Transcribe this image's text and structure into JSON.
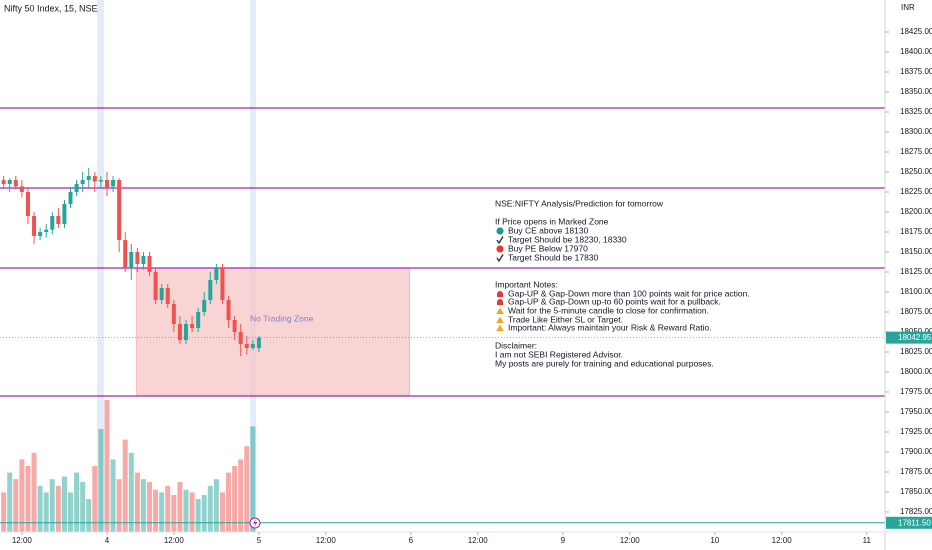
{
  "chart_data": {
    "type": "candlestick",
    "title": "Nifty 50 Index, 15, NSE",
    "currency": "INR",
    "up_color": "#26a69a",
    "down_color": "#ef5350",
    "x": [
      -17,
      -16,
      -15,
      -14,
      -13,
      -12,
      -11,
      -10,
      -9,
      -8,
      -7,
      -6,
      -5,
      -4,
      -3,
      -2,
      -1,
      0,
      1,
      2,
      3,
      4,
      5,
      6,
      7,
      8,
      9,
      10,
      11,
      12,
      13,
      14,
      15,
      16,
      17,
      18,
      19,
      20,
      21,
      22,
      23,
      24,
      25
    ],
    "open": [
      18240,
      18235,
      18240,
      18232,
      18225,
      18195,
      18170,
      18175,
      18178,
      18195,
      18185,
      18210,
      18225,
      18235,
      18240,
      18245,
      18238,
      18240,
      18232,
      18240,
      18165,
      18130,
      18150,
      18135,
      18145,
      18125,
      18090,
      18105,
      18085,
      18060,
      18040,
      18060,
      18055,
      18075,
      18090,
      18115,
      18130,
      18090,
      18065,
      18050,
      18035,
      18030,
      18030
    ],
    "high": [
      18245,
      18242,
      18245,
      18240,
      18230,
      18200,
      18180,
      18185,
      18200,
      18205,
      18215,
      18230,
      18240,
      18250,
      18255,
      18250,
      18245,
      18250,
      18245,
      18242,
      18175,
      18160,
      18155,
      18150,
      18150,
      18130,
      18110,
      18110,
      18090,
      18070,
      18065,
      18070,
      18080,
      18100,
      18125,
      18135,
      18135,
      18095,
      18070,
      18060,
      18045,
      18040,
      18045
    ],
    "low": [
      18230,
      18225,
      18228,
      18218,
      18185,
      18160,
      18165,
      18168,
      18172,
      18180,
      18180,
      18205,
      18220,
      18225,
      18230,
      18225,
      18230,
      18220,
      18225,
      18150,
      18125,
      18115,
      18125,
      18128,
      18120,
      18085,
      18085,
      18080,
      18050,
      18035,
      18035,
      18050,
      18050,
      18070,
      18085,
      18110,
      18085,
      18055,
      18040,
      18020,
      18022,
      18028,
      18025
    ],
    "close": [
      18235,
      18240,
      18232,
      18225,
      18195,
      18170,
      18175,
      18178,
      18195,
      18185,
      18210,
      18225,
      18235,
      18240,
      18245,
      18238,
      18240,
      18230,
      18240,
      18165,
      18130,
      18150,
      18135,
      18145,
      18125,
      18090,
      18105,
      18085,
      18060,
      18040,
      18060,
      18055,
      18075,
      18090,
      18115,
      18130,
      18090,
      18065,
      18050,
      18035,
      18030,
      18035,
      18042.95
    ],
    "volume": [
      30,
      45,
      40,
      55,
      50,
      60,
      35,
      30,
      40,
      35,
      42,
      30,
      45,
      38,
      25,
      50,
      78,
      100,
      55,
      40,
      70,
      60,
      45,
      40,
      38,
      32,
      30,
      35,
      28,
      38,
      32,
      30,
      25,
      28,
      35,
      40,
      30,
      45,
      50,
      55,
      65,
      80,
      0
    ],
    "xlim": [
      -17.6,
      128
    ],
    "xticks": [
      {
        "value": -14,
        "label": "12:00"
      },
      {
        "value": 0,
        "label": "4"
      },
      {
        "value": 11,
        "label": "12:00"
      },
      {
        "value": 25,
        "label": "5"
      },
      {
        "value": 36,
        "label": "12:00"
      },
      {
        "value": 50,
        "label": "6"
      },
      {
        "value": 61,
        "label": "12:00"
      },
      {
        "value": 75,
        "label": "9"
      },
      {
        "value": 86,
        "label": "12:00"
      },
      {
        "value": 100,
        "label": "10"
      },
      {
        "value": 111,
        "label": "12:00"
      },
      {
        "value": 125,
        "label": "11"
      }
    ],
    "ylim": [
      17800,
      18465
    ],
    "yticks": [
      {
        "value": 17825,
        "label": "17825.00"
      },
      {
        "value": 17850,
        "label": "17850.00"
      },
      {
        "value": 17875,
        "label": "17875.00"
      },
      {
        "value": 17900,
        "label": "17900.00"
      },
      {
        "value": 17925,
        "label": "17925.00"
      },
      {
        "value": 17950,
        "label": "17950.00"
      },
      {
        "value": 17975,
        "label": "17975.00"
      },
      {
        "value": 18000,
        "label": "18000.00"
      },
      {
        "value": 18025,
        "label": "18025.00"
      },
      {
        "value": 18050,
        "label": "18050.00"
      },
      {
        "value": 18075,
        "label": "18075.00"
      },
      {
        "value": 18100,
        "label": "18100.00"
      },
      {
        "value": 18125,
        "label": "18125.00"
      },
      {
        "value": 18150,
        "label": "18150.00"
      },
      {
        "value": 18175,
        "label": "18175.00"
      },
      {
        "value": 18200,
        "label": "18200.00"
      },
      {
        "value": 18225,
        "label": "18225.00"
      },
      {
        "value": 18250,
        "label": "18250.00"
      },
      {
        "value": 18275,
        "label": "18275.00"
      },
      {
        "value": 18300,
        "label": "18300.00"
      },
      {
        "value": 18325,
        "label": "18325.00"
      },
      {
        "value": 18350,
        "label": "18350.00"
      },
      {
        "value": 18375,
        "label": "18375.00"
      },
      {
        "value": 18400,
        "label": "18400.00"
      },
      {
        "value": 18425,
        "label": "18425.00"
      }
    ],
    "levels": [
      {
        "value": 18330,
        "color": "#9c27b0"
      },
      {
        "value": 18230,
        "color": "#9c27b0"
      },
      {
        "value": 18130,
        "color": "#9c27b0"
      },
      {
        "value": 17970,
        "color": "#9c27b0"
      }
    ],
    "zone": {
      "from": 17970,
      "to": 18130,
      "x": [
        4.8,
        49.8
      ],
      "color": "#f7c5c5",
      "label": "No Trading Zone"
    },
    "last_price": 18042.95,
    "baseline": {
      "value": 17811.5,
      "label": "17811.50",
      "color": "#26a69a"
    },
    "notes": [
      "NSE:NIFTY Analysis/Prediction for tomorrow",
      "If Price opens in Marked Zone",
      "Buy CE above 18130",
      "Target Should be 18230, 18330",
      "Buy PE Below 17970",
      "Target Should be 17830",
      "Important Notes:",
      "Gap-UP & Gap-Down more than 100 points wait for price action.",
      "Gap-UP & Gap-Down up-to 60 points wait for a pullback.",
      "Wait for the 5-minute candle to close for confirmation.",
      "Trade Like Either SL or Target.",
      "Important: Always maintain your Risk & Reward Ratio.",
      "Disclaimer:",
      "I am not SEBI Registered Advisor.",
      "My posts are purely for training and educational purposes."
    ]
  }
}
